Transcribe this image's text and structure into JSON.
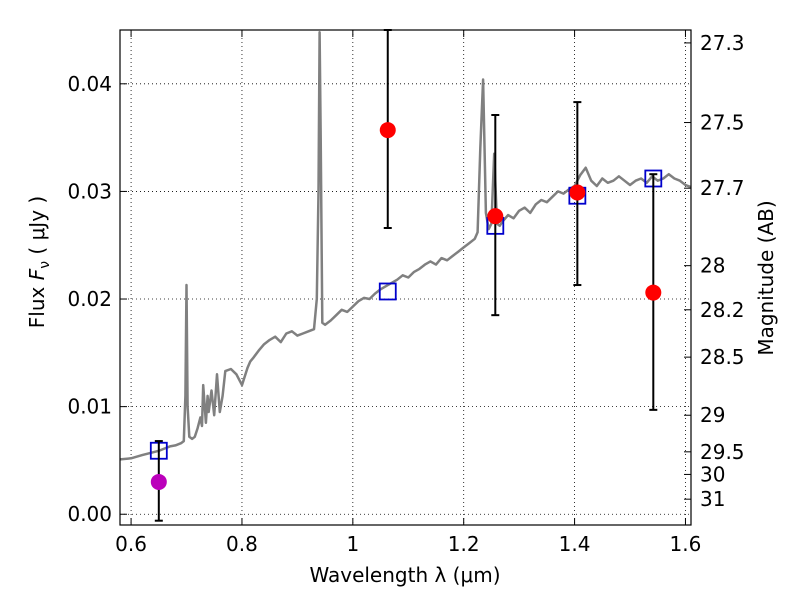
{
  "chart_data": {
    "type": "scatter",
    "xlabel": "Wavelength  λ (μm)",
    "ylabel": "Flux  F_ν  ( μJy )",
    "ylabel_parts": {
      "prefix": "Flux  ",
      "symbol": "F",
      "subscript": "ν",
      "suffix": "  ( μJy )"
    },
    "ylabel_right": "Magnitude (AB)",
    "xlim": [
      0.58,
      1.61
    ],
    "ylim": [
      -0.001,
      0.045
    ],
    "grid": true,
    "x_ticks": [
      0.6,
      0.8,
      1.0,
      1.2,
      1.4,
      1.6
    ],
    "x_tick_labels": [
      "0.6",
      "0.8",
      "1",
      "1.2",
      "1.4",
      "1.6"
    ],
    "y_ticks": [
      0.0,
      0.01,
      0.02,
      0.03,
      0.04
    ],
    "y_tick_labels": [
      "0.00",
      "0.01",
      "0.02",
      "0.03",
      "0.04"
    ],
    "right_ticks": [
      {
        "label": "27.3",
        "flux": 0.0438
      },
      {
        "label": "27.5",
        "flux": 0.0364
      },
      {
        "label": "27.7",
        "flux": 0.0303
      },
      {
        "label": "28",
        "flux": 0.0231
      },
      {
        "label": "28.2",
        "flux": 0.019
      },
      {
        "label": "28.5",
        "flux": 0.0146
      },
      {
        "label": "29",
        "flux": 0.0092
      },
      {
        "label": "29.5",
        "flux": 0.0058
      },
      {
        "label": "30",
        "flux": 0.0037
      },
      {
        "label": "31",
        "flux": 0.0014
      }
    ],
    "series": [
      {
        "name": "model spectrum",
        "type": "line",
        "color": "#808080",
        "x": [
          0.58,
          0.6,
          0.62,
          0.635,
          0.65,
          0.66,
          0.67,
          0.68,
          0.69,
          0.695,
          0.698,
          0.7,
          0.702,
          0.705,
          0.71,
          0.715,
          0.72,
          0.725,
          0.728,
          0.73,
          0.735,
          0.738,
          0.74,
          0.745,
          0.75,
          0.755,
          0.76,
          0.765,
          0.77,
          0.78,
          0.79,
          0.8,
          0.81,
          0.815,
          0.82,
          0.83,
          0.84,
          0.85,
          0.86,
          0.87,
          0.88,
          0.89,
          0.9,
          0.91,
          0.92,
          0.93,
          0.935,
          0.938,
          0.94,
          0.942,
          0.945,
          0.95,
          0.96,
          0.97,
          0.98,
          0.99,
          1.0,
          1.01,
          1.02,
          1.03,
          1.04,
          1.05,
          1.06,
          1.07,
          1.08,
          1.09,
          1.1,
          1.11,
          1.12,
          1.13,
          1.14,
          1.15,
          1.16,
          1.17,
          1.18,
          1.19,
          1.2,
          1.21,
          1.22,
          1.225,
          1.23,
          1.235,
          1.24,
          1.245,
          1.25,
          1.255,
          1.26,
          1.265,
          1.27,
          1.28,
          1.29,
          1.3,
          1.31,
          1.32,
          1.33,
          1.34,
          1.35,
          1.36,
          1.37,
          1.38,
          1.39,
          1.4,
          1.41,
          1.42,
          1.43,
          1.44,
          1.45,
          1.46,
          1.47,
          1.48,
          1.49,
          1.5,
          1.51,
          1.52,
          1.53,
          1.54,
          1.55,
          1.56,
          1.57,
          1.58,
          1.59,
          1.6,
          1.61
        ],
        "y": [
          0.0051,
          0.0052,
          0.0055,
          0.0057,
          0.0059,
          0.0061,
          0.0063,
          0.0064,
          0.0066,
          0.0068,
          0.011,
          0.0213,
          0.01,
          0.0072,
          0.007,
          0.0072,
          0.008,
          0.009,
          0.0082,
          0.012,
          0.0085,
          0.011,
          0.0095,
          0.0115,
          0.0092,
          0.013,
          0.0095,
          0.011,
          0.0133,
          0.0135,
          0.013,
          0.012,
          0.0136,
          0.0142,
          0.0145,
          0.0152,
          0.0158,
          0.0162,
          0.0165,
          0.016,
          0.0168,
          0.017,
          0.0166,
          0.0168,
          0.017,
          0.0172,
          0.02,
          0.03,
          0.0448,
          0.035,
          0.0178,
          0.0176,
          0.018,
          0.0185,
          0.019,
          0.0188,
          0.0193,
          0.0198,
          0.0201,
          0.02,
          0.0205,
          0.0209,
          0.0212,
          0.0215,
          0.0218,
          0.0222,
          0.022,
          0.0225,
          0.0228,
          0.0232,
          0.0235,
          0.0232,
          0.0238,
          0.0236,
          0.024,
          0.0244,
          0.0248,
          0.0252,
          0.0256,
          0.0262,
          0.034,
          0.0404,
          0.028,
          0.0265,
          0.027,
          0.0335,
          0.027,
          0.0268,
          0.0272,
          0.0278,
          0.0275,
          0.0282,
          0.0285,
          0.028,
          0.0288,
          0.0292,
          0.029,
          0.0295,
          0.03,
          0.0298,
          0.0302,
          0.0305,
          0.0315,
          0.0322,
          0.031,
          0.0305,
          0.0312,
          0.0308,
          0.031,
          0.0314,
          0.031,
          0.0306,
          0.031,
          0.0312,
          0.0308,
          0.0314,
          0.031,
          0.0312,
          0.0316,
          0.0312,
          0.031,
          0.0306,
          0.0304
        ]
      },
      {
        "name": "model photometry",
        "type": "marker",
        "marker": "square",
        "color": "#0000cc",
        "points": [
          {
            "x": 0.65,
            "y": 0.0059
          },
          {
            "x": 1.063,
            "y": 0.0207
          },
          {
            "x": 1.257,
            "y": 0.0268
          },
          {
            "x": 1.405,
            "y": 0.0296
          },
          {
            "x": 1.542,
            "y": 0.0312
          }
        ]
      },
      {
        "name": "observed photometry",
        "type": "errorbar",
        "marker": "circle",
        "color": "#ff0000",
        "points": [
          {
            "x": 0.65,
            "y": 0.003,
            "lo": -0.0006,
            "hi": 0.0068,
            "color": "#bb00bb"
          },
          {
            "x": 1.063,
            "y": 0.0357,
            "lo": 0.0266,
            "hi": 0.045
          },
          {
            "x": 1.257,
            "y": 0.0277,
            "lo": 0.0185,
            "hi": 0.0371
          },
          {
            "x": 1.405,
            "y": 0.0299,
            "lo": 0.0213,
            "hi": 0.0383
          },
          {
            "x": 1.542,
            "y": 0.0206,
            "lo": 0.0097,
            "hi": 0.0316
          }
        ]
      }
    ]
  }
}
